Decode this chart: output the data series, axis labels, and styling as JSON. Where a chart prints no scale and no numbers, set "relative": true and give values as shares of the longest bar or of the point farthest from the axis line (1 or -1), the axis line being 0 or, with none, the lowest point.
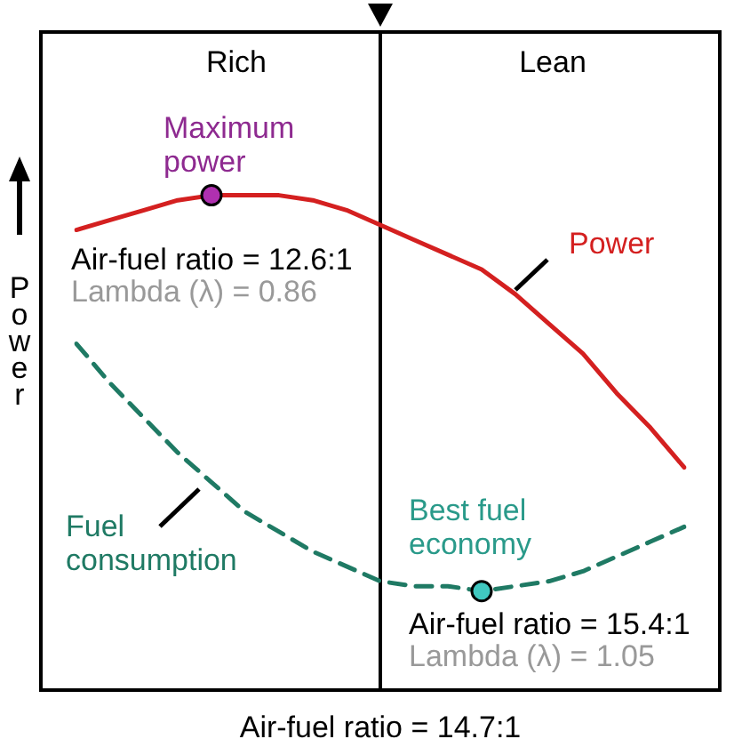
{
  "chart_data": {
    "type": "line",
    "relative": true,
    "legend": false,
    "marker": "none",
    "ylabel": "Power",
    "categories": [
      null,
      null,
      null,
      null,
      null,
      null,
      null,
      null,
      null,
      null,
      null,
      null,
      null,
      null,
      null,
      null,
      null,
      null,
      null
    ],
    "series": [
      {
        "name": "Power",
        "color": "#d42020",
        "values": [
          0.93,
          0.95,
          0.97,
          0.99,
          1.0,
          1.0,
          1.0,
          0.99,
          0.97,
          0.94,
          0.91,
          0.88,
          0.85,
          0.8,
          0.74,
          0.68,
          0.6,
          0.53,
          0.45
        ]
      },
      {
        "name": "Fuel consumption",
        "color": "#1f7a64",
        "line_style": "dashed",
        "values": [
          0.7,
          0.62,
          0.55,
          0.48,
          0.42,
          0.36,
          0.32,
          0.28,
          0.25,
          0.22,
          0.21,
          0.21,
          0.2,
          0.21,
          0.22,
          0.24,
          0.27,
          0.3,
          0.33
        ]
      }
    ],
    "annotations": [
      "Air-fuel ratio = 14.7:1",
      "Rich",
      "Lean",
      "Air-fuel ratio = 12.6:1",
      "Lambda (λ) = 0.86",
      "Air-fuel ratio = 15.4:1",
      "Lambda (λ) = 1.05",
      {
        "text": "Maximum power",
        "y": 1.0
      },
      {
        "text": "Best fuel economy",
        "y": 0.2
      }
    ]
  }
}
